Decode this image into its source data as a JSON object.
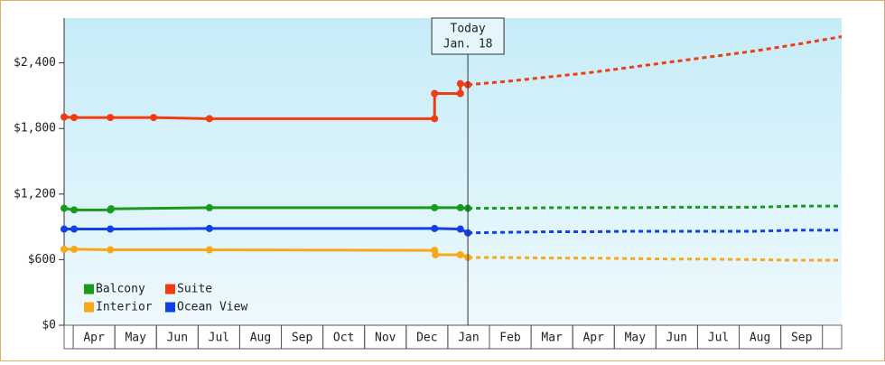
{
  "chart_data": {
    "type": "line",
    "xlim": [
      -0.11,
      18.57
    ],
    "ylim": [
      0,
      2810
    ],
    "xticks": [
      {
        "value": 0.5,
        "label": "Apr"
      },
      {
        "value": 1.5,
        "label": "May"
      },
      {
        "value": 2.5,
        "label": "Jun"
      },
      {
        "value": 3.5,
        "label": "Jul"
      },
      {
        "value": 4.5,
        "label": "Aug"
      },
      {
        "value": 5.5,
        "label": "Sep"
      },
      {
        "value": 6.5,
        "label": "Oct"
      },
      {
        "value": 7.5,
        "label": "Nov"
      },
      {
        "value": 8.5,
        "label": "Dec"
      },
      {
        "value": 9.5,
        "label": "Jan"
      },
      {
        "value": 10.5,
        "label": "Feb"
      },
      {
        "value": 11.5,
        "label": "Mar"
      },
      {
        "value": 12.5,
        "label": "Apr"
      },
      {
        "value": 13.5,
        "label": "May"
      },
      {
        "value": 14.5,
        "label": "Jun"
      },
      {
        "value": 15.5,
        "label": "Jul"
      },
      {
        "value": 16.5,
        "label": "Aug"
      },
      {
        "value": 17.5,
        "label": "Sep"
      }
    ],
    "yticks": [
      {
        "value": 0,
        "label": "$0"
      },
      {
        "value": 600,
        "label": "$600"
      },
      {
        "value": 1200,
        "label": "$1,200"
      },
      {
        "value": 1800,
        "label": "$1,800"
      },
      {
        "value": 2400,
        "label": "$2,400"
      }
    ],
    "marker": {
      "x": 9.59,
      "label": [
        "Today",
        "Jan. 18"
      ]
    },
    "forecast_x": [
      9.59,
      10.5,
      11.5,
      12.5,
      13.5,
      14.5,
      15.5,
      16.5,
      17.5,
      18.57
    ],
    "series": [
      {
        "name": "Balcony",
        "color": "#1a9a1a",
        "x": [
          -0.11,
          0.13,
          1.0,
          1.02,
          3.38,
          8.79,
          9.41,
          9.59
        ],
        "values": [
          1070,
          1055,
          1055,
          1065,
          1075,
          1075,
          1075,
          1070
        ],
        "forecast": [
          1070,
          1070,
          1075,
          1075,
          1075,
          1080,
          1080,
          1080,
          1090,
          1090
        ]
      },
      {
        "name": "Suite",
        "color": "#f03c10",
        "x": [
          -0.11,
          0.13,
          1.0,
          2.04,
          3.38,
          8.79,
          8.79,
          9.41,
          9.41,
          9.59
        ],
        "values": [
          1905,
          1900,
          1900,
          1900,
          1890,
          1890,
          2120,
          2120,
          2210,
          2200
        ],
        "forecast": [
          2200,
          2230,
          2270,
          2310,
          2360,
          2410,
          2460,
          2510,
          2570,
          2640
        ]
      },
      {
        "name": "Interior",
        "color": "#f8a818",
        "x": [
          -0.11,
          0.13,
          1.0,
          3.38,
          8.79,
          8.81,
          9.41,
          9.59
        ],
        "values": [
          695,
          695,
          690,
          690,
          685,
          645,
          645,
          620
        ],
        "forecast": [
          620,
          620,
          615,
          615,
          610,
          605,
          605,
          600,
          595,
          595
        ]
      },
      {
        "name": "Ocean View",
        "color": "#1040e8",
        "x": [
          -0.11,
          0.13,
          1.0,
          3.38,
          8.79,
          9.41,
          9.59
        ],
        "values": [
          880,
          880,
          880,
          885,
          885,
          880,
          845
        ],
        "forecast": [
          845,
          850,
          855,
          855,
          860,
          860,
          860,
          860,
          870,
          870
        ]
      }
    ]
  }
}
